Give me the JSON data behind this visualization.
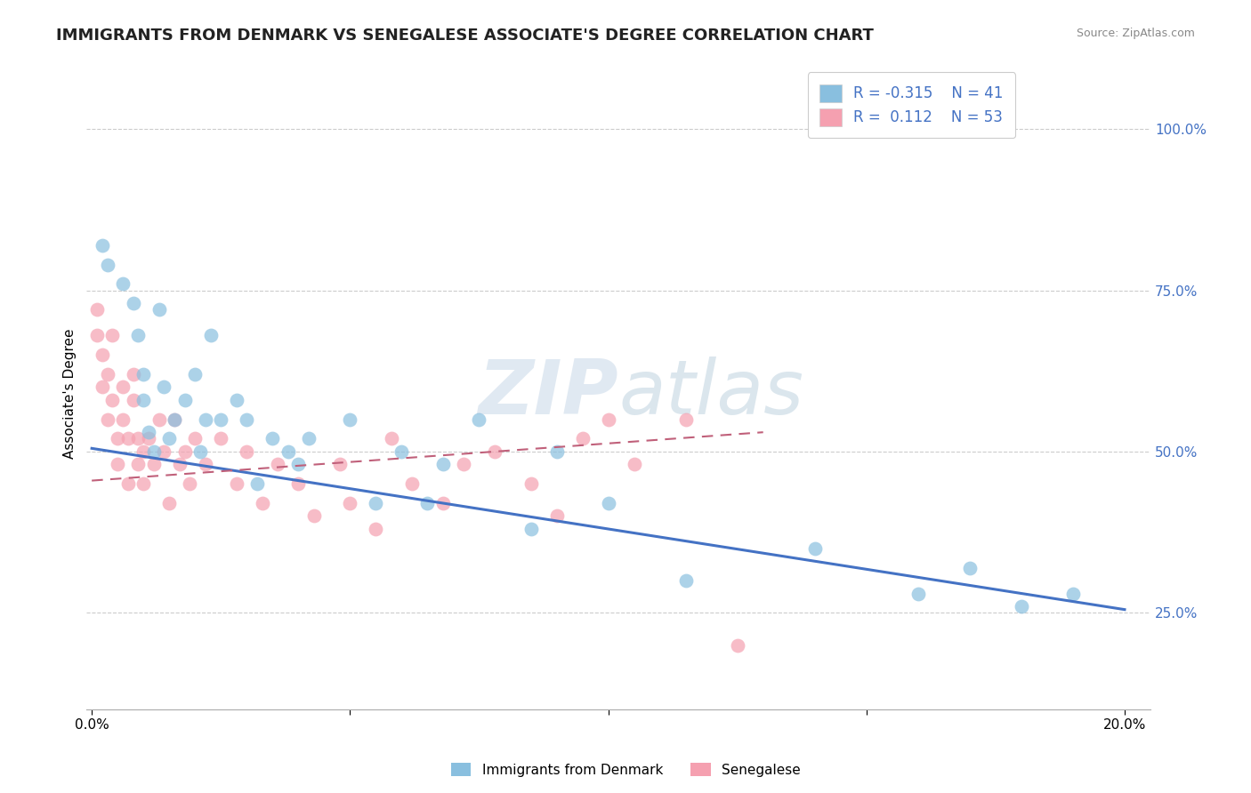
{
  "title": "IMMIGRANTS FROM DENMARK VS SENEGALESE ASSOCIATE'S DEGREE CORRELATION CHART",
  "source": "Source: ZipAtlas.com",
  "ylabel": "Associate's Degree",
  "xlim": [
    -0.001,
    0.205
  ],
  "ylim": [
    0.1,
    1.08
  ],
  "xticks": [
    0.0,
    0.05,
    0.1,
    0.15,
    0.2
  ],
  "xtick_labels": [
    "0.0%",
    "",
    "",
    "",
    "20.0%"
  ],
  "yticks_right": [
    0.25,
    0.5,
    0.75,
    1.0
  ],
  "ytick_labels_right": [
    "25.0%",
    "50.0%",
    "75.0%",
    "100.0%"
  ],
  "grid_color": "#cccccc",
  "background_color": "#ffffff",
  "blue_color": "#89bfdf",
  "pink_color": "#f5a0b0",
  "blue_line_color": "#4472c4",
  "pink_line_color": "#c0607a",
  "legend_R1": "-0.315",
  "legend_N1": "41",
  "legend_R2": "0.112",
  "legend_N2": "53",
  "title_fontsize": 13,
  "watermark_zip": "ZIP",
  "watermark_atlas": "atlas",
  "blue_trend_x0": 0.0,
  "blue_trend_y0": 0.505,
  "blue_trend_x1": 0.2,
  "blue_trend_y1": 0.255,
  "pink_trend_x0": 0.0,
  "pink_trend_y0": 0.455,
  "pink_trend_x1": 0.13,
  "pink_trend_y1": 0.53,
  "denmark_x": [
    0.002,
    0.003,
    0.006,
    0.008,
    0.009,
    0.01,
    0.01,
    0.011,
    0.012,
    0.013,
    0.014,
    0.015,
    0.016,
    0.018,
    0.02,
    0.021,
    0.022,
    0.023,
    0.025,
    0.028,
    0.03,
    0.032,
    0.035,
    0.038,
    0.04,
    0.042,
    0.05,
    0.055,
    0.06,
    0.065,
    0.068,
    0.075,
    0.085,
    0.09,
    0.1,
    0.115,
    0.14,
    0.16,
    0.17,
    0.18,
    0.19
  ],
  "denmark_y": [
    0.82,
    0.79,
    0.76,
    0.73,
    0.68,
    0.62,
    0.58,
    0.53,
    0.5,
    0.72,
    0.6,
    0.52,
    0.55,
    0.58,
    0.62,
    0.5,
    0.55,
    0.68,
    0.55,
    0.58,
    0.55,
    0.45,
    0.52,
    0.5,
    0.48,
    0.52,
    0.55,
    0.42,
    0.5,
    0.42,
    0.48,
    0.55,
    0.38,
    0.5,
    0.42,
    0.3,
    0.35,
    0.28,
    0.32,
    0.26,
    0.28
  ],
  "senegal_x": [
    0.001,
    0.001,
    0.002,
    0.002,
    0.003,
    0.003,
    0.004,
    0.004,
    0.005,
    0.005,
    0.006,
    0.006,
    0.007,
    0.007,
    0.008,
    0.008,
    0.009,
    0.009,
    0.01,
    0.01,
    0.011,
    0.012,
    0.013,
    0.014,
    0.015,
    0.016,
    0.017,
    0.018,
    0.019,
    0.02,
    0.022,
    0.025,
    0.028,
    0.03,
    0.033,
    0.036,
    0.04,
    0.043,
    0.048,
    0.05,
    0.055,
    0.058,
    0.062,
    0.068,
    0.072,
    0.078,
    0.085,
    0.09,
    0.095,
    0.1,
    0.105,
    0.115,
    0.125
  ],
  "senegal_y": [
    0.72,
    0.68,
    0.65,
    0.6,
    0.62,
    0.55,
    0.68,
    0.58,
    0.52,
    0.48,
    0.55,
    0.6,
    0.52,
    0.45,
    0.58,
    0.62,
    0.52,
    0.48,
    0.5,
    0.45,
    0.52,
    0.48,
    0.55,
    0.5,
    0.42,
    0.55,
    0.48,
    0.5,
    0.45,
    0.52,
    0.48,
    0.52,
    0.45,
    0.5,
    0.42,
    0.48,
    0.45,
    0.4,
    0.48,
    0.42,
    0.38,
    0.52,
    0.45,
    0.42,
    0.48,
    0.5,
    0.45,
    0.4,
    0.52,
    0.55,
    0.48,
    0.55,
    0.2
  ]
}
